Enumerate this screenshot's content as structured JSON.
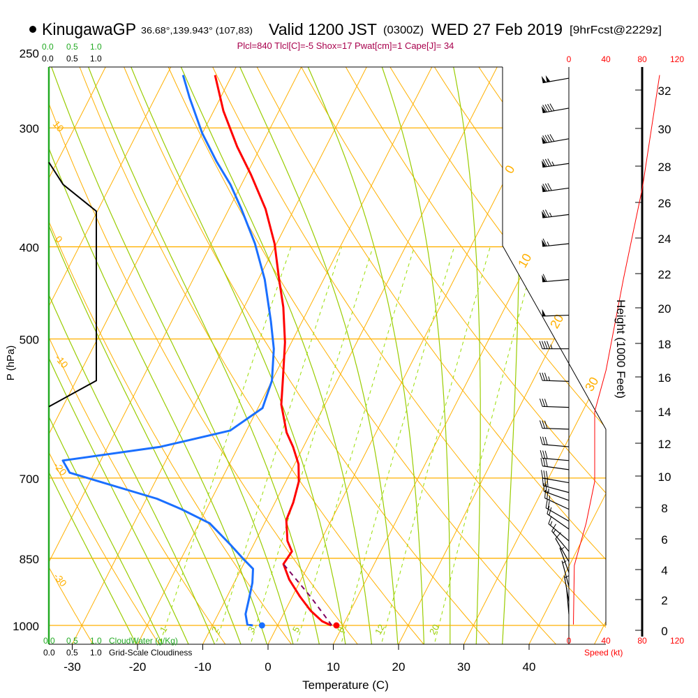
{
  "header": {
    "station": "KinugawaGP",
    "coords": "36.68°,139.943° (107,83)",
    "valid": "Valid 1200 JST",
    "utc": "(0300Z)",
    "date": "WED 27 Feb 2019",
    "forecast": "[9hrFcst@2229z]"
  },
  "stats": "Plcl=840 Tlcl[C]=-5 Shox=17 Pwat[cm]=1 Cape[J]= 34",
  "cloud_water_scale": {
    "ticks": [
      "0.0",
      "0.5",
      "1.0"
    ],
    "label": "CloudWater (g/Kg)"
  },
  "cloudiness_scale": {
    "ticks": [
      "0.0",
      "0.5",
      "1.0"
    ],
    "label": "Grid-Scale Cloudiness"
  },
  "speed_axis": {
    "ticks": [
      "0",
      "40",
      "80",
      "120"
    ],
    "label": "Speed (kt)"
  },
  "height_axis": {
    "ticks": [
      "0",
      "2",
      "4",
      "6",
      "8",
      "10",
      "12",
      "14",
      "16",
      "18",
      "20",
      "22",
      "24",
      "26",
      "28",
      "30",
      "32"
    ],
    "label": "Height (1000 Feet)"
  },
  "colors": {
    "temperature": "#ff0000",
    "dewpoint": "#1a6fff",
    "parcel": "#800060",
    "isotherm": "#ffb000",
    "moist": "#99cc00",
    "stats": "#a8004c",
    "cloud_water": "#22aa22"
  },
  "chart_data": {
    "type": "skew-t",
    "title": "KinugawaGP Valid 1200 JST (0300Z) WED 27 Feb 2019",
    "xlabel": "Temperature (C)",
    "ylabel": "P (hPa)",
    "x_ticks": [
      "-30",
      "-20",
      "-10",
      "0",
      "10",
      "20",
      "30",
      "40"
    ],
    "pressure_levels": [
      "250",
      "300",
      "400",
      "500",
      "700",
      "850",
      "1000"
    ],
    "dry_adiabat_labels": [
      "10",
      "0",
      "-10",
      "-20",
      "-30"
    ],
    "isotherm_labels": [
      "0",
      "10",
      "20",
      "30"
    ],
    "mixing_ratio_labels": [
      "1",
      "2",
      "3",
      "5",
      "8",
      "12",
      "20"
    ],
    "temperature": [
      [
        1000,
        8.2
      ],
      [
        990,
        6.5
      ],
      [
        965,
        3.9
      ],
      [
        933,
        1.2
      ],
      [
        895,
        -1.8
      ],
      [
        862,
        -3.9
      ],
      [
        836,
        -3.6
      ],
      [
        815,
        -5.1
      ],
      [
        775,
        -6.9
      ],
      [
        743,
        -7.2
      ],
      [
        706,
        -8.0
      ],
      [
        677,
        -9.4
      ],
      [
        649,
        -11.6
      ],
      [
        627,
        -13.7
      ],
      [
        586,
        -16.7
      ],
      [
        548,
        -18.6
      ],
      [
        504,
        -21.0
      ],
      [
        463,
        -24.0
      ],
      [
        433,
        -26.8
      ],
      [
        397,
        -30.3
      ],
      [
        365,
        -34.4
      ],
      [
        336,
        -39.3
      ],
      [
        314,
        -43.6
      ],
      [
        288,
        -48.5
      ],
      [
        264,
        -52.6
      ]
    ],
    "dewpoint": [
      [
        1000,
        -3.8
      ],
      [
        998,
        -4.7
      ],
      [
        973,
        -5.8
      ],
      [
        941,
        -6.4
      ],
      [
        902,
        -7.2
      ],
      [
        872,
        -8.2
      ],
      [
        850,
        -10.6
      ],
      [
        822,
        -13.6
      ],
      [
        781,
        -18.4
      ],
      [
        755,
        -23.8
      ],
      [
        736,
        -28.4
      ],
      [
        691,
        -43.8
      ],
      [
        671,
        -45.8
      ],
      [
        649,
        -31.9
      ],
      [
        624,
        -22.5
      ],
      [
        591,
        -19.3
      ],
      [
        553,
        -20.0
      ],
      [
        512,
        -22.2
      ],
      [
        479,
        -24.8
      ],
      [
        433,
        -29.0
      ],
      [
        397,
        -33.3
      ],
      [
        365,
        -38.1
      ],
      [
        344,
        -41.7
      ],
      [
        325,
        -45.7
      ],
      [
        304,
        -50.0
      ],
      [
        279,
        -54.7
      ],
      [
        264,
        -57.5
      ]
    ],
    "surface_temperature": 9.0,
    "surface_dewpoint": -2.4,
    "parcel": [
      [
        1000,
        8.3
      ],
      [
        933,
        2.8
      ],
      [
        862,
        -3.9
      ]
    ],
    "cloudiness": [
      [
        326,
        0
      ],
      [
        344,
        0.3
      ],
      [
        367,
        1.0
      ],
      [
        553,
        1.0
      ],
      [
        589,
        0
      ]
    ],
    "wind_speed_profile": [
      [
        264,
        100
      ],
      [
        347,
        81
      ],
      [
        433,
        60
      ],
      [
        539,
        41
      ],
      [
        596,
        28.5
      ],
      [
        706,
        28.5
      ],
      [
        781,
        19
      ],
      [
        865,
        6
      ],
      [
        998,
        5
      ]
    ],
    "wind_barbs": [
      [
        266,
        100,
        260
      ],
      [
        286,
        90,
        260
      ],
      [
        308,
        90,
        260
      ],
      [
        327,
        85,
        262
      ],
      [
        347,
        80,
        262
      ],
      [
        370,
        75,
        263
      ],
      [
        397,
        65,
        264
      ],
      [
        433,
        60,
        265
      ],
      [
        472,
        50,
        268
      ],
      [
        512,
        45,
        270
      ],
      [
        554,
        35,
        272
      ],
      [
        590,
        30,
        272
      ],
      [
        622,
        30,
        272
      ],
      [
        649,
        30,
        275
      ],
      [
        671,
        30,
        275
      ],
      [
        686,
        30,
        278
      ],
      [
        708,
        30,
        280
      ],
      [
        725,
        30,
        285
      ],
      [
        739,
        25,
        290
      ],
      [
        755,
        25,
        295
      ],
      [
        777,
        20,
        300
      ],
      [
        792,
        20,
        305
      ],
      [
        815,
        15,
        310
      ],
      [
        836,
        15,
        320
      ],
      [
        857,
        10,
        330
      ],
      [
        880,
        5,
        340
      ],
      [
        910,
        5,
        345
      ],
      [
        944,
        3,
        350
      ],
      [
        973,
        2,
        355
      ]
    ]
  }
}
